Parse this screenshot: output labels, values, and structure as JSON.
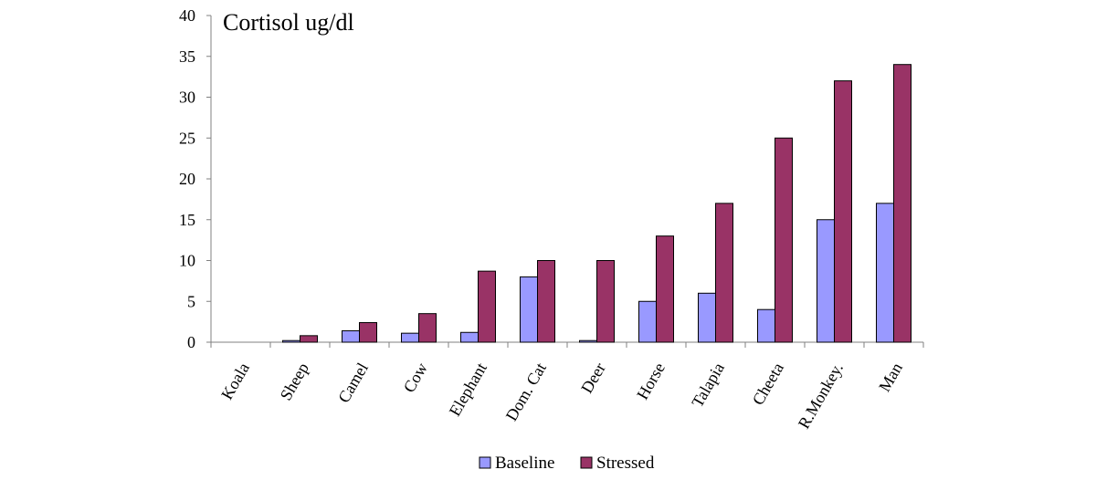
{
  "chart_data": {
    "type": "bar",
    "title": "Cortisol ug/dl",
    "xlabel": "",
    "ylabel": "",
    "ylim": [
      0,
      40
    ],
    "yticks": [
      0,
      5,
      10,
      15,
      20,
      25,
      30,
      35,
      40
    ],
    "categories": [
      "Koala",
      "Sheep",
      "Camel",
      "Cow",
      "Elephant",
      "Dom. Cat",
      "Deer",
      "Horse",
      "Talapia",
      "Cheeta",
      "R.Monkey.",
      "Man"
    ],
    "series": [
      {
        "name": "Baseline",
        "color": "#9999ff",
        "values": [
          0,
          0.2,
          1.4,
          1.1,
          1.2,
          8,
          0.2,
          5,
          6,
          4,
          15,
          17
        ]
      },
      {
        "name": "Stressed",
        "color": "#993366",
        "values": [
          0,
          0.8,
          2.4,
          3.5,
          8.7,
          10,
          10,
          13,
          17,
          25,
          32,
          34
        ]
      }
    ],
    "grid": false,
    "legend_position": "bottom"
  }
}
